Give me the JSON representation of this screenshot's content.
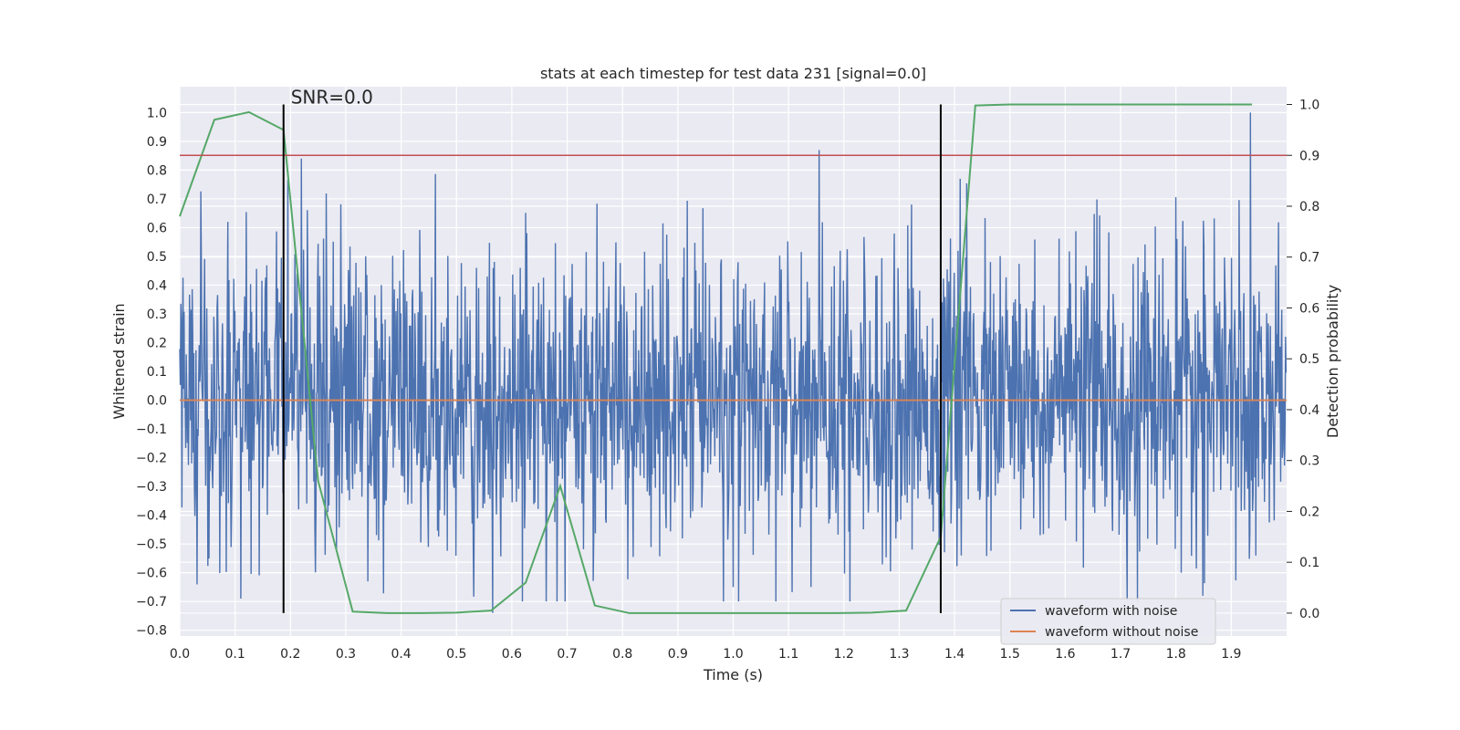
{
  "chart_data": {
    "type": "line",
    "title": "stats at each timestep for test data 231 [signal=0.0]",
    "xlabel": "Time (s)",
    "ylabel": "Whitened strain",
    "y2label": "Detection probability",
    "xlim": [
      0.0,
      2.0
    ],
    "ylim": [
      -0.82,
      1.09
    ],
    "y2lim": [
      -0.045,
      1.035
    ],
    "x_ticks": [
      "0.0",
      "0.1",
      "0.2",
      "0.3",
      "0.4",
      "0.5",
      "0.6",
      "0.7",
      "0.8",
      "0.9",
      "1.0",
      "1.1",
      "1.2",
      "1.3",
      "1.4",
      "1.5",
      "1.6",
      "1.7",
      "1.8",
      "1.9"
    ],
    "y_ticks": [
      "−0.8",
      "−0.7",
      "−0.6",
      "−0.5",
      "−0.4",
      "−0.3",
      "−0.2",
      "−0.1",
      "0.0",
      "0.1",
      "0.2",
      "0.3",
      "0.4",
      "0.5",
      "0.6",
      "0.7",
      "0.8",
      "0.9",
      "1.0"
    ],
    "y2_ticks": [
      "0.0",
      "0.1",
      "0.2",
      "0.3",
      "0.4",
      "0.5",
      "0.6",
      "0.7",
      "0.8",
      "0.9",
      "1.0"
    ],
    "grid": true,
    "legend_position": "lower-right",
    "annotation": "SNR=0.0",
    "colors": {
      "noise": "#4c72b0",
      "clean": "#dd8452",
      "probability": "#55a868",
      "threshold": "#c44e52",
      "markers": "#000000",
      "background": "#eaeaf2",
      "grid": "#ffffff"
    },
    "series": [
      {
        "name": "waveform with noise",
        "axis": "left",
        "note_style": "dense noise",
        "sample_rate": 1024,
        "amplitude_std": 0.25,
        "spikes": [
          [
            0.22,
            0.84
          ],
          [
            1.155,
            0.87
          ],
          [
            1.935,
            1.0
          ],
          [
            0.565,
            -0.74
          ],
          [
            0.11,
            -0.69
          ],
          [
            1.81,
            -0.6
          ],
          [
            0.34,
            -0.63
          ],
          [
            1.0,
            -0.65
          ],
          [
            1.41,
            0.77
          ]
        ]
      },
      {
        "name": "waveform without noise",
        "axis": "left",
        "x": [
          0.0,
          2.0
        ],
        "values": [
          0.0,
          0.0
        ]
      },
      {
        "name": "",
        "axis": "right",
        "x": [
          0.0,
          0.0625,
          0.125,
          0.1875,
          0.25,
          0.3125,
          0.375,
          0.4375,
          0.5,
          0.5625,
          0.625,
          0.6875,
          0.75,
          0.8125,
          0.875,
          0.9375,
          1.0,
          1.0625,
          1.125,
          1.1875,
          1.25,
          1.3125,
          1.375,
          1.4375,
          1.5,
          1.5625,
          1.625,
          1.6875,
          1.75,
          1.8125,
          1.875,
          1.9375
        ],
        "values": [
          0.78,
          0.97,
          0.985,
          0.95,
          0.26,
          0.003,
          0.0,
          0.0,
          0.001,
          0.005,
          0.06,
          0.25,
          0.015,
          0.0,
          0.0,
          0.0,
          0.0,
          0.0,
          0.0,
          0.0,
          0.001,
          0.005,
          0.15,
          0.998,
          1.0,
          1.0,
          1.0,
          1.0,
          1.0,
          1.0,
          1.0,
          1.0
        ]
      }
    ],
    "threshold_line": {
      "axis": "right",
      "value": 0.9
    },
    "vertical_markers": [
      {
        "x": 0.1875,
        "y2_range": [
          0.0,
          1.0
        ]
      },
      {
        "x": 1.375,
        "y2_range": [
          0.0,
          1.0
        ]
      }
    ]
  }
}
